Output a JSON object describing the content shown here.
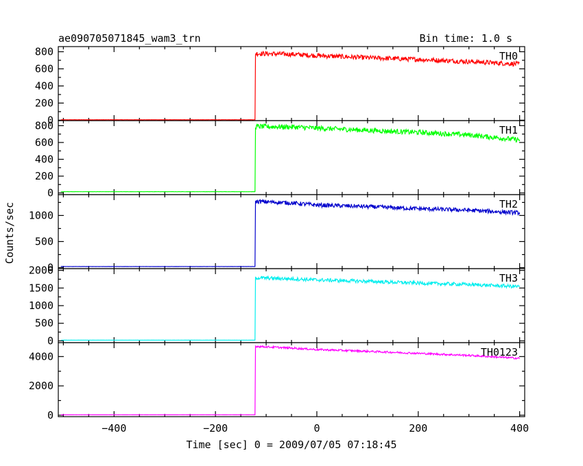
{
  "header": {
    "title": "ae090705071845_wam3_trn",
    "bin_time": "Bin time: 1.0 s"
  },
  "axes": {
    "xlabel": "Time [sec] 0 = 2009/07/05 07:18:45",
    "ylabel": "Counts/sec"
  },
  "chart_data": {
    "type": "line",
    "xlim": [
      -510,
      410
    ],
    "x_ticks": [
      -400,
      -200,
      0,
      200,
      400
    ],
    "x_tick_labels": [
      "−400",
      "−200",
      "0",
      "200",
      "400"
    ],
    "bin_seconds": 1.0,
    "step_time": -122,
    "panels": [
      {
        "name": "TH0",
        "color": "#ff0000",
        "ylim": [
          -5,
          860
        ],
        "y_ticks": [
          0,
          200,
          400,
          600,
          800
        ],
        "profile": [
          [
            -505,
            5
          ],
          [
            -122,
            5
          ],
          [
            -121,
            780
          ],
          [
            -50,
            770
          ],
          [
            0,
            755
          ],
          [
            100,
            730
          ],
          [
            200,
            710
          ],
          [
            300,
            685
          ],
          [
            400,
            655
          ]
        ],
        "noise": 28
      },
      {
        "name": "TH1",
        "color": "#00ff00",
        "ylim": [
          -20,
          860
        ],
        "y_ticks": [
          0,
          200,
          400,
          600,
          800
        ],
        "profile": [
          [
            -505,
            15
          ],
          [
            -122,
            15
          ],
          [
            -121,
            790
          ],
          [
            -50,
            785
          ],
          [
            0,
            770
          ],
          [
            100,
            745
          ],
          [
            200,
            720
          ],
          [
            300,
            690
          ],
          [
            400,
            630
          ]
        ],
        "noise": 30
      },
      {
        "name": "TH2",
        "color": "#0000cc",
        "ylim": [
          -20,
          1400
        ],
        "y_ticks": [
          0,
          500,
          1000
        ],
        "profile": [
          [
            -505,
            20
          ],
          [
            -122,
            20
          ],
          [
            -121,
            1270
          ],
          [
            -50,
            1240
          ],
          [
            0,
            1200
          ],
          [
            100,
            1170
          ],
          [
            200,
            1130
          ],
          [
            300,
            1100
          ],
          [
            400,
            1050
          ]
        ],
        "noise": 40
      },
      {
        "name": "TH3",
        "color": "#00eeee",
        "ylim": [
          -50,
          2050
        ],
        "y_ticks": [
          0,
          500,
          1000,
          1500,
          2000
        ],
        "profile": [
          [
            -505,
            20
          ],
          [
            -122,
            20
          ],
          [
            -121,
            1790
          ],
          [
            -50,
            1760
          ],
          [
            0,
            1730
          ],
          [
            100,
            1690
          ],
          [
            200,
            1640
          ],
          [
            300,
            1600
          ],
          [
            400,
            1540
          ]
        ],
        "noise": 50
      },
      {
        "name": "TH0123",
        "color": "#ff00ff",
        "ylim": [
          -100,
          4950
        ],
        "y_ticks": [
          0,
          2000,
          4000
        ],
        "profile": [
          [
            -505,
            30
          ],
          [
            -122,
            30
          ],
          [
            -121,
            4700
          ],
          [
            -50,
            4580
          ],
          [
            0,
            4480
          ],
          [
            100,
            4360
          ],
          [
            200,
            4220
          ],
          [
            300,
            4080
          ],
          [
            400,
            3880
          ]
        ],
        "noise": 65
      }
    ]
  }
}
